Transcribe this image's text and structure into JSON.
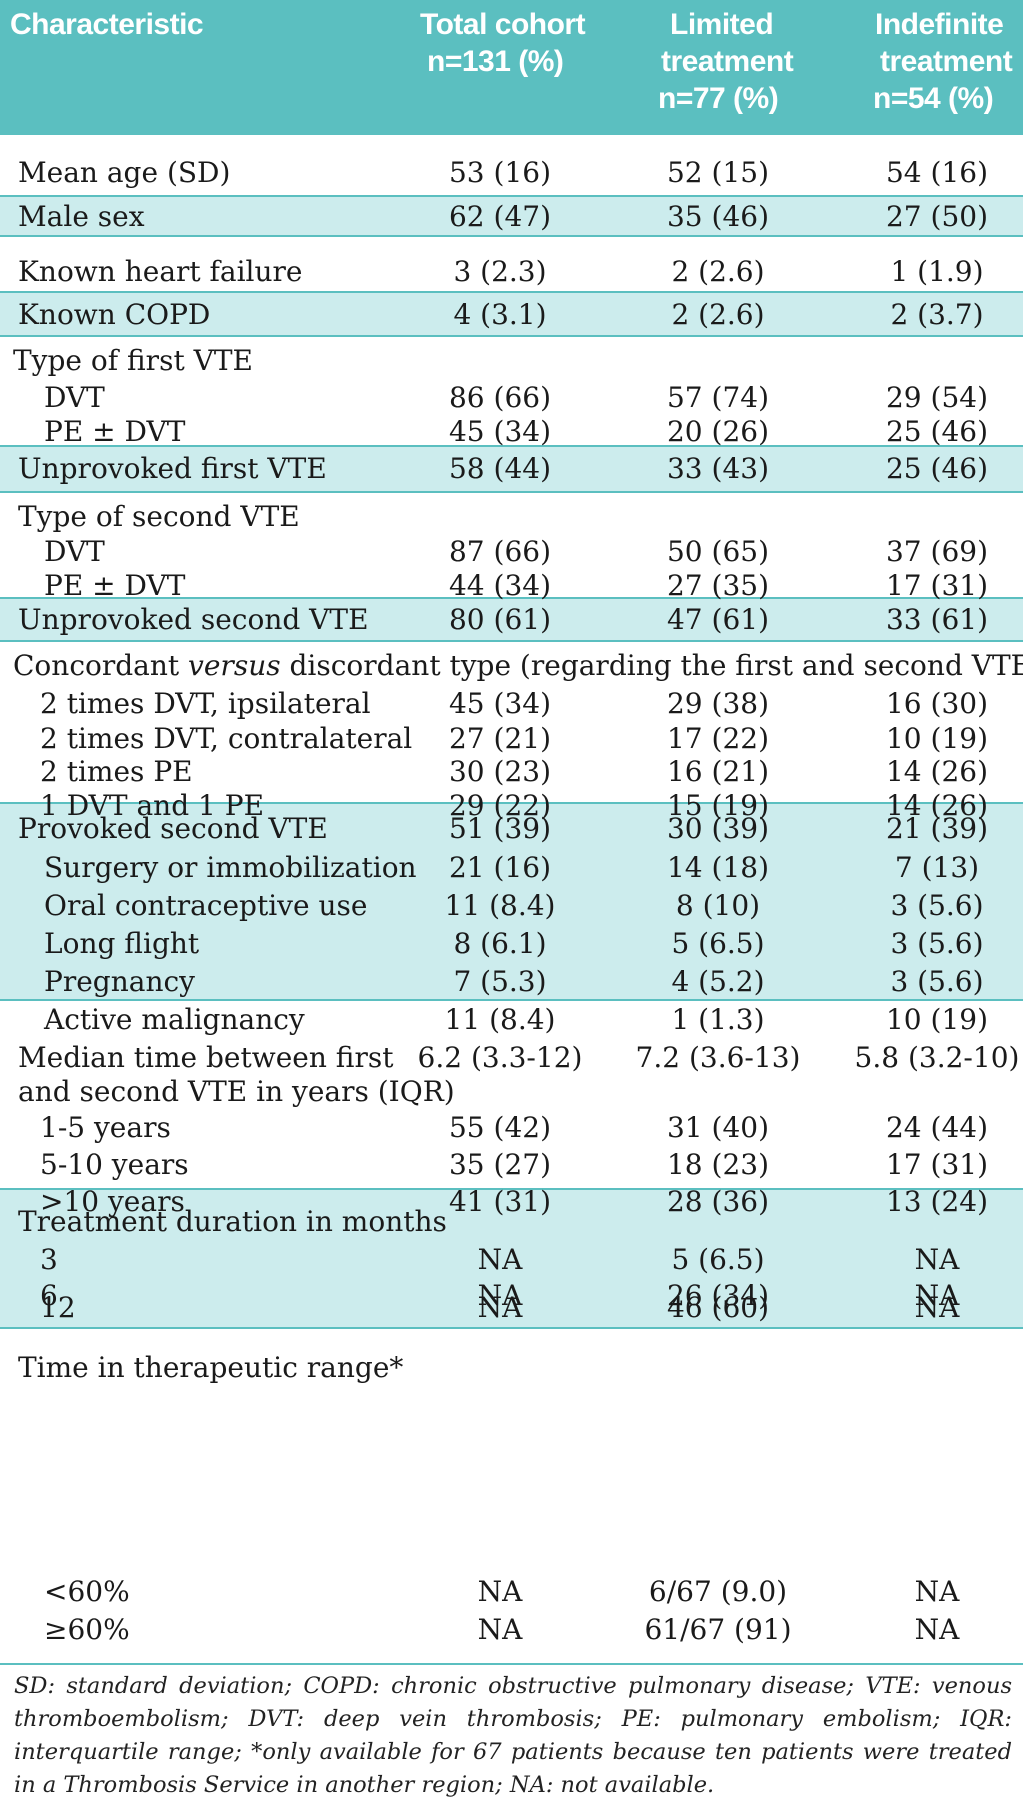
{
  "header": {
    "characteristic": "Characteristic",
    "total": [
      "Total cohort",
      "n=131 (%)"
    ],
    "limited": [
      "Limited",
      "treatment",
      "n=77 (%)"
    ],
    "indefinite": [
      "Indefinite",
      "treatment",
      "n=54 (%)"
    ]
  },
  "rows": [
    {
      "label": "Mean age (SD)",
      "total": "53 (16)",
      "limited": "52 (15)",
      "indefinite": "54 (16)"
    },
    {
      "label": "Male sex",
      "total": "62 (47)",
      "limited": "35 (46)",
      "indefinite": "27 (50)"
    },
    {
      "label": "Known heart failure",
      "total": "3 (2.3)",
      "limited": "2 (2.6)",
      "indefinite": "1 (1.9)"
    },
    {
      "label": "Known COPD",
      "total": "4 (3.1)",
      "limited": "2 (2.6)",
      "indefinite": "2 (3.7)"
    },
    {
      "label": "Type of first VTE",
      "total": "",
      "limited": "",
      "indefinite": ""
    },
    {
      "label": "DVT",
      "total": "86 (66)",
      "limited": "57 (74)",
      "indefinite": "29 (54)"
    },
    {
      "label": "PE ± DVT",
      "total": "45 (34)",
      "limited": "20 (26)",
      "indefinite": "25 (46)"
    },
    {
      "label": "Unprovoked first VTE",
      "total": "58 (44)",
      "limited": "33 (43)",
      "indefinite": "25 (46)"
    },
    {
      "label": "Type of second VTE",
      "total": "",
      "limited": "",
      "indefinite": ""
    },
    {
      "label": "DVT",
      "total": "87 (66)",
      "limited": "50 (65)",
      "indefinite": "37 (69)"
    },
    {
      "label": "PE ± DVT",
      "total": "44 (34)",
      "limited": "27 (35)",
      "indefinite": "17 (31)"
    },
    {
      "label": "Unprovoked second VTE",
      "total": "80 (61)",
      "limited": "47 (61)",
      "indefinite": "33 (61)"
    },
    {
      "label_pre": "Concordant ",
      "label_em": "versus",
      "label_post": " discordant type (regarding the first and second VTE)"
    },
    {
      "label": "2 times DVT, ipsilateral",
      "total": "45 (34)",
      "limited": "29 (38)",
      "indefinite": "16 (30)"
    },
    {
      "label": "2 times DVT, contralateral",
      "total": "27 (21)",
      "limited": "17 (22)",
      "indefinite": "10 (19)"
    },
    {
      "label": "2 times PE",
      "total": "30 (23)",
      "limited": "16 (21)",
      "indefinite": "14 (26)"
    },
    {
      "label": "1 DVT and 1 PE",
      "total": "29 (22)",
      "limited": "15 (19)",
      "indefinite": "14 (26)"
    },
    {
      "label": "Provoked second VTE",
      "total": "51 (39)",
      "limited": "30 (39)",
      "indefinite": "21 (39)"
    },
    {
      "label": "Surgery or immobilization",
      "total": "21 (16)",
      "limited": "14 (18)",
      "indefinite": "7 (13)"
    },
    {
      "label": "Oral contraceptive use",
      "total": "11 (8.4)",
      "limited": "8 (10)",
      "indefinite": "3 (5.6)"
    },
    {
      "label": "Long flight",
      "total": "8 (6.1)",
      "limited": "5 (6.5)",
      "indefinite": "3 (5.6)"
    },
    {
      "label": "Pregnancy",
      "total": "7 (5.3)",
      "limited": "4 (5.2)",
      "indefinite": "3 (5.6)"
    },
    {
      "label": "Active malignancy",
      "total": "11 (8.4)",
      "limited": "1 (1.3)",
      "indefinite": "10 (19)"
    },
    {
      "label": "Median time between first",
      "total": "6.2 (3.3-12)",
      "limited": "7.2 (3.6-13)",
      "indefinite": "5.8 (3.2-10)"
    },
    {
      "label": "and second VTE in years (IQR)",
      "total": "",
      "limited": "",
      "indefinite": ""
    },
    {
      "label": "1-5 years",
      "total": "55 (42)",
      "limited": "31 (40)",
      "indefinite": "24 (44)"
    },
    {
      "label": "5-10 years",
      "total": "35 (27)",
      "limited": "18 (23)",
      "indefinite": "17 (31)"
    },
    {
      "label": ">10 years",
      "total": "41 (31)",
      "limited": "28 (36)",
      "indefinite": "13 (24)"
    },
    {
      "label": "Treatment duration in months",
      "total": "",
      "limited": "",
      "indefinite": ""
    },
    {
      "label": "3",
      "total": "NA",
      "limited": "5 (6.5)",
      "indefinite": "NA"
    },
    {
      "label": "6",
      "total": "NA",
      "limited": "26 (34)",
      "indefinite": "NA"
    },
    {
      "label": "12",
      "total": "NA",
      "limited": "46 (60)",
      "indefinite": "NA"
    },
    {
      "label": "Time in therapeutic range*",
      "total": "",
      "limited": "",
      "indefinite": ""
    },
    {
      "label": "<60%",
      "total": "NA",
      "limited": "6/67 (9.0)",
      "indefinite": "NA"
    },
    {
      "label": "≥60%",
      "total": "NA",
      "limited": "61/67 (91)",
      "indefinite": "NA"
    }
  ],
  "footnote": "SD: standard deviation; COPD: chronic obstructive pulmonary disease; VTE: venous thromboembolism; DVT: deep vein thrombosis; PE: pulmonary embolism; IQR: interquartile range; *only available for 67 patients because ten patients were treated in a Thrombosis Service in another region; NA: not available."
}
